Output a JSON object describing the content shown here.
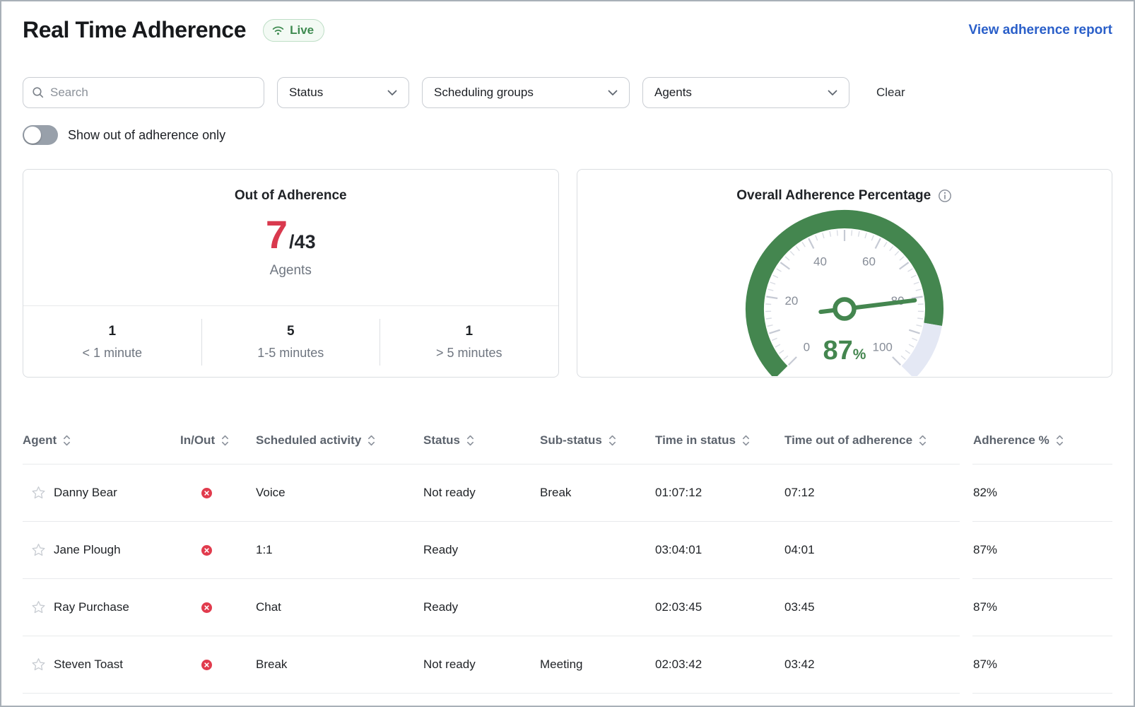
{
  "page": {
    "title": "Real Time Adherence",
    "live_badge": "Live",
    "report_link": "View adherence report"
  },
  "filters": {
    "search_placeholder": "Search",
    "dropdowns": [
      {
        "label": "Status"
      },
      {
        "label": "Scheduling groups"
      },
      {
        "label": "Agents"
      }
    ],
    "clear_label": "Clear",
    "toggle_label": "Show out of adherence only",
    "toggle_on": false
  },
  "out_of_adherence": {
    "title": "Out of Adherence",
    "count": "7",
    "total": "/43",
    "unit": "Agents",
    "breakdown": [
      {
        "value": "1",
        "label": "< 1 minute"
      },
      {
        "value": "5",
        "label": "1-5 minutes"
      },
      {
        "value": "1",
        "label": "> 5 minutes"
      }
    ]
  },
  "overall_adherence": {
    "title": "Overall Adherence Percentage"
  },
  "chart_data": {
    "type": "gauge",
    "title": "Overall Adherence Percentage",
    "value": 87,
    "min": 0,
    "max": 100,
    "tick_labels": [
      "0",
      "20",
      "40",
      "60",
      "80",
      "100"
    ],
    "value_label": "87",
    "unit": "%"
  },
  "table": {
    "columns": [
      {
        "label": "Agent"
      },
      {
        "label": "In/Out"
      },
      {
        "label": "Scheduled activity"
      },
      {
        "label": "Status"
      },
      {
        "label": "Sub-status"
      },
      {
        "label": "Time in status"
      },
      {
        "label": "Time out of adherence"
      },
      {
        "label": "Adherence %"
      }
    ],
    "rows": [
      {
        "agent": "Danny Bear",
        "in_out": "out-of-adherence",
        "scheduled_activity": "Voice",
        "status": "Not ready",
        "sub_status": "Break",
        "time_in_status": "01:07:12",
        "time_out_of_adherence": "07:12",
        "adherence_pct": "82%"
      },
      {
        "agent": "Jane Plough",
        "in_out": "out-of-adherence",
        "scheduled_activity": "1:1",
        "status": "Ready",
        "sub_status": "",
        "time_in_status": "03:04:01",
        "time_out_of_adherence": "04:01",
        "adherence_pct": "87%"
      },
      {
        "agent": "Ray Purchase",
        "in_out": "out-of-adherence",
        "scheduled_activity": "Chat",
        "status": "Ready",
        "sub_status": "",
        "time_in_status": "02:03:45",
        "time_out_of_adherence": "03:45",
        "adherence_pct": "87%"
      },
      {
        "agent": "Steven Toast",
        "in_out": "out-of-adherence",
        "scheduled_activity": "Break",
        "status": "Not ready",
        "sub_status": "Meeting",
        "time_in_status": "02:03:42",
        "time_out_of_adherence": "03:42",
        "adherence_pct": "87%"
      }
    ]
  },
  "colors": {
    "accent_green": "#44864f",
    "badge_green": "#3f8b51",
    "alert_red": "#e13b4d",
    "big_number_red": "#d9394e",
    "link_blue": "#2a5fc9",
    "gauge_remainder": "#e4e8f4",
    "tick_gray": "#c6cad4"
  }
}
